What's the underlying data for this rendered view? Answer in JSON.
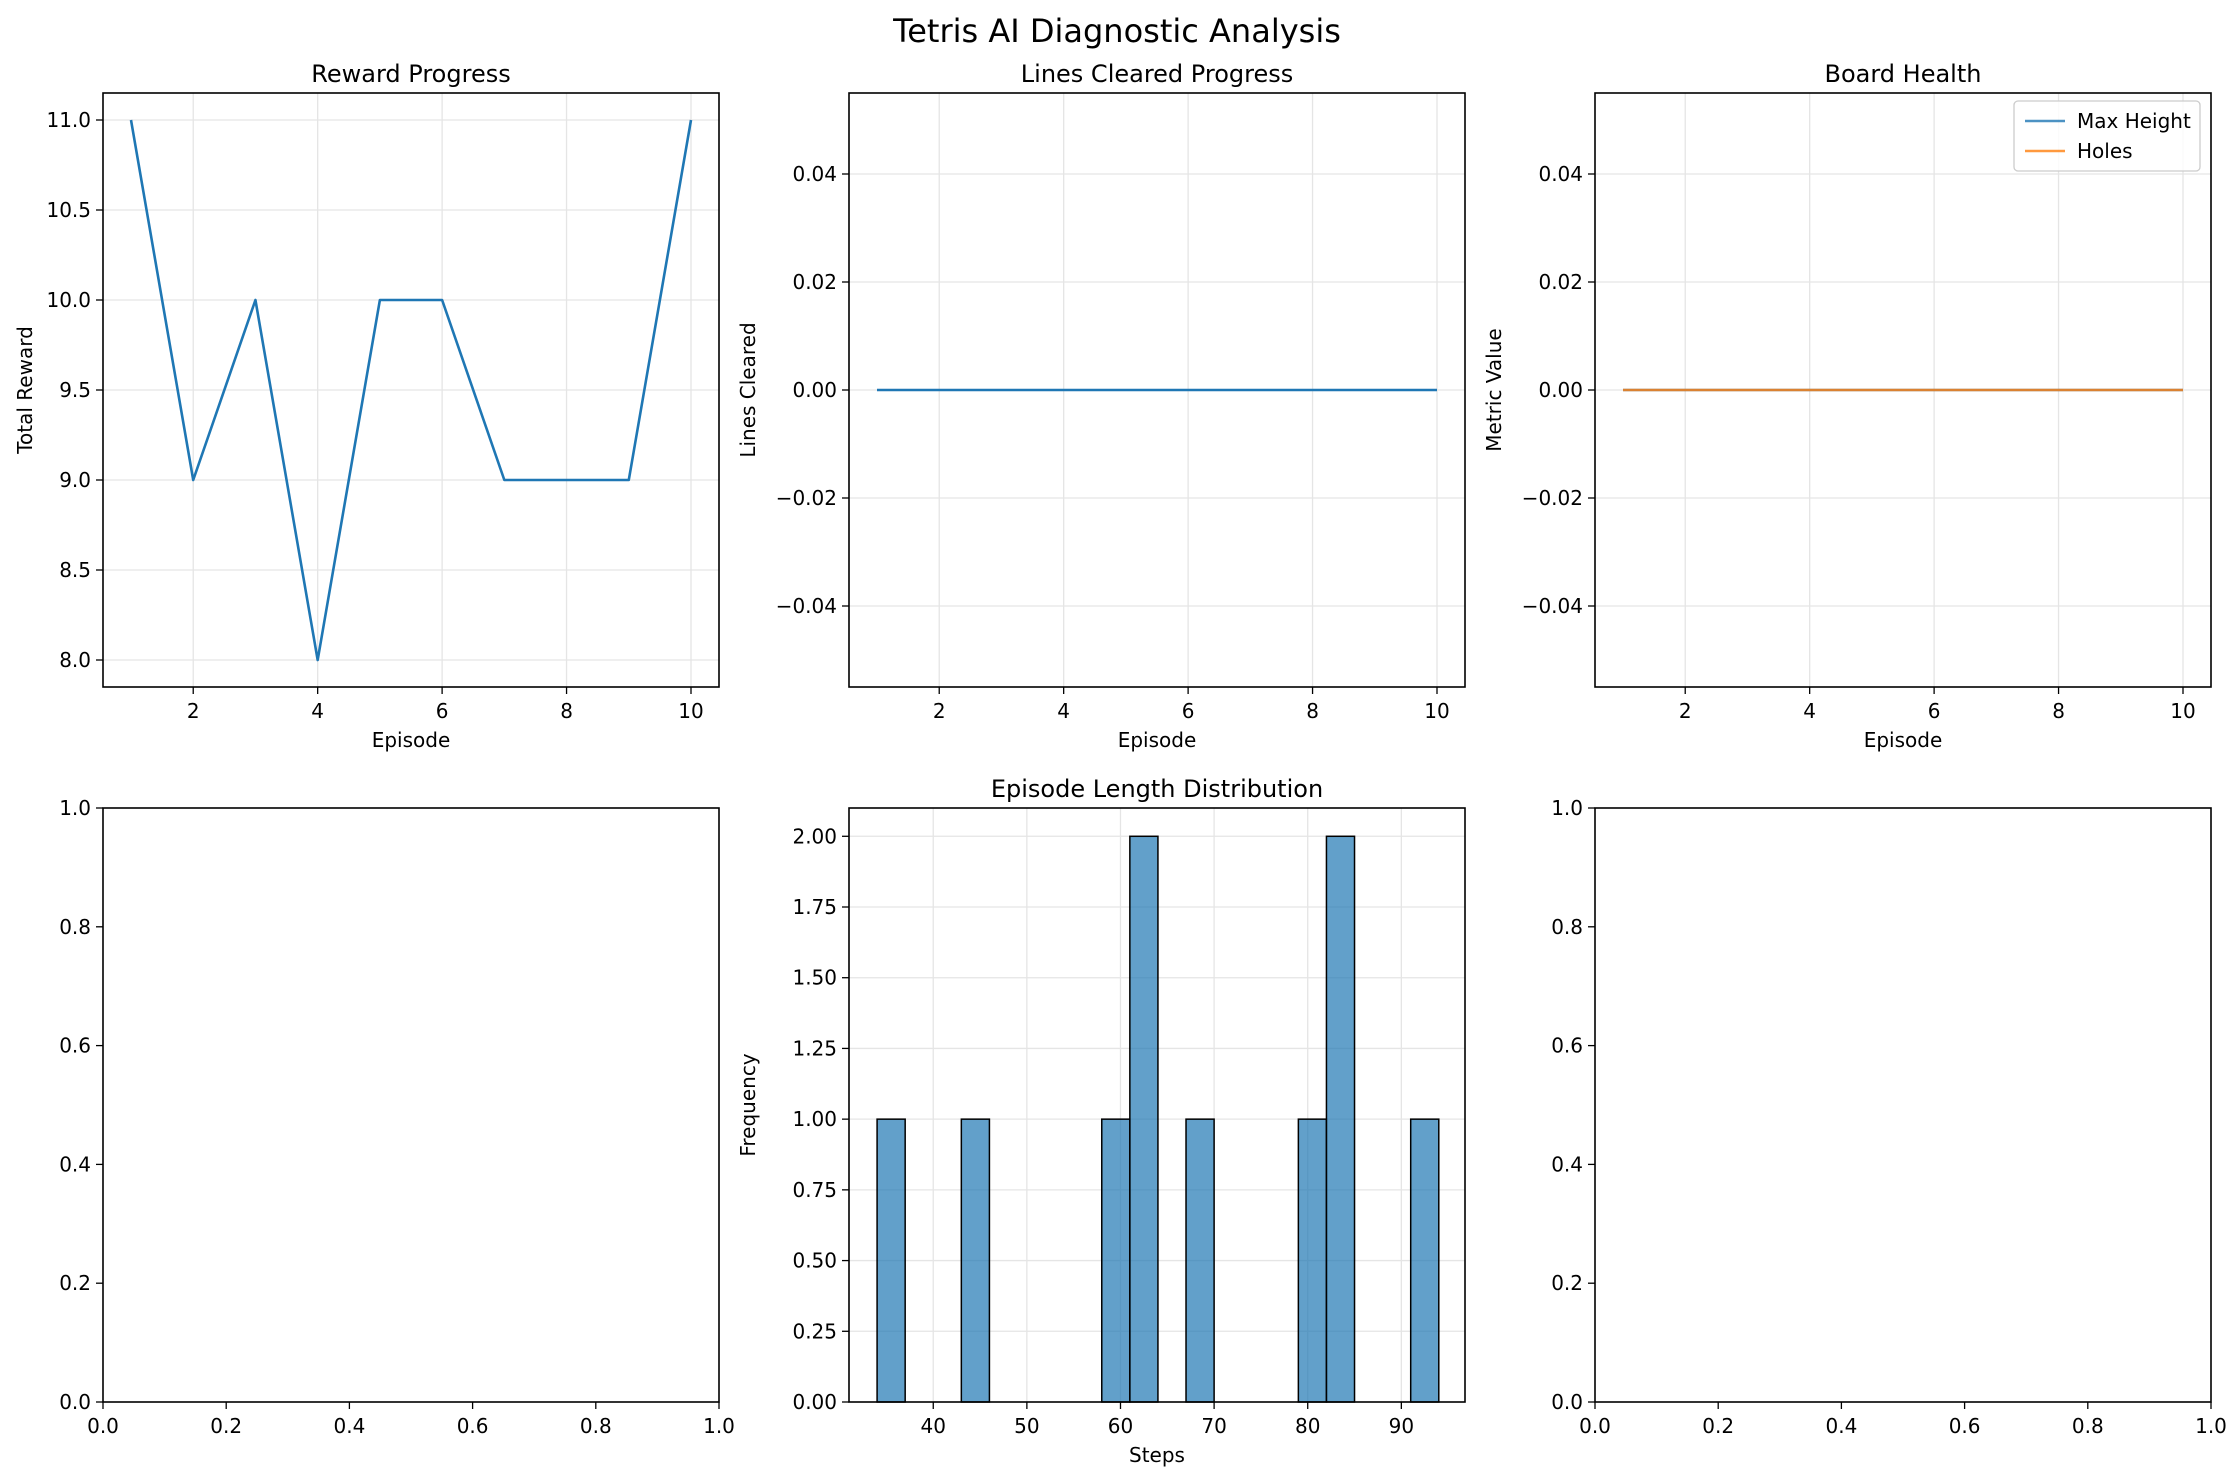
{
  "figure": {
    "suptitle": "Tetris AI Diagnostic Analysis"
  },
  "colors": {
    "blue": "#1f77b4",
    "orange": "#ff7f0e",
    "hist_fill": "#1f77b4",
    "grid": "#e6e6e6"
  },
  "chart_data": [
    {
      "id": "reward",
      "type": "line",
      "title": "Reward Progress",
      "xlabel": "Episode",
      "ylabel": "Total Reward",
      "xlim": [
        0.55,
        10.45
      ],
      "ylim": [
        7.85,
        11.15
      ],
      "xticks": [
        2,
        4,
        6,
        8,
        10
      ],
      "yticks": [
        8.0,
        8.5,
        9.0,
        9.5,
        10.0,
        10.5,
        11.0
      ],
      "ytick_labels": [
        "8.0",
        "8.5",
        "9.0",
        "9.5",
        "10.0",
        "10.5",
        "11.0"
      ],
      "grid": true,
      "series": [
        {
          "x": [
            1,
            2,
            3,
            4,
            5,
            6,
            7,
            8,
            9,
            10
          ],
          "y": [
            11,
            9,
            10,
            8,
            10,
            10,
            9,
            9,
            9,
            11
          ],
          "color": "#1f77b4"
        }
      ]
    },
    {
      "id": "lines",
      "type": "line",
      "title": "Lines Cleared Progress",
      "xlabel": "Episode",
      "ylabel": "Lines Cleared",
      "xlim": [
        0.55,
        10.45
      ],
      "ylim": [
        -0.055,
        0.055
      ],
      "xticks": [
        2,
        4,
        6,
        8,
        10
      ],
      "yticks": [
        -0.04,
        -0.02,
        0.0,
        0.02,
        0.04
      ],
      "ytick_labels": [
        "−0.04",
        "−0.02",
        "0.00",
        "0.02",
        "0.04"
      ],
      "grid": true,
      "series": [
        {
          "x": [
            1,
            2,
            3,
            4,
            5,
            6,
            7,
            8,
            9,
            10
          ],
          "y": [
            0,
            0,
            0,
            0,
            0,
            0,
            0,
            0,
            0,
            0
          ],
          "color": "#1f77b4"
        }
      ]
    },
    {
      "id": "health",
      "type": "line",
      "title": "Board Health",
      "xlabel": "Episode",
      "ylabel": "Metric Value",
      "xlim": [
        0.55,
        10.45
      ],
      "ylim": [
        -0.055,
        0.055
      ],
      "xticks": [
        2,
        4,
        6,
        8,
        10
      ],
      "yticks": [
        -0.04,
        -0.02,
        0.0,
        0.02,
        0.04
      ],
      "ytick_labels": [
        "−0.04",
        "−0.02",
        "0.00",
        "0.02",
        "0.04"
      ],
      "grid": true,
      "legend": "top-right",
      "series": [
        {
          "name": "Max Height",
          "x": [
            1,
            2,
            3,
            4,
            5,
            6,
            7,
            8,
            9,
            10
          ],
          "y": [
            0,
            0,
            0,
            0,
            0,
            0,
            0,
            0,
            0,
            0
          ],
          "color": "#1f77b4"
        },
        {
          "name": "Holes",
          "x": [
            1,
            2,
            3,
            4,
            5,
            6,
            7,
            8,
            9,
            10
          ],
          "y": [
            0,
            0,
            0,
            0,
            0,
            0,
            0,
            0,
            0,
            0
          ],
          "color": "#ff7f0e"
        }
      ]
    },
    {
      "id": "empty1",
      "type": "line",
      "title": "",
      "xlabel": "",
      "ylabel": "",
      "xlim": [
        0,
        1
      ],
      "ylim": [
        0,
        1
      ],
      "xticks": [
        0.0,
        0.2,
        0.4,
        0.6,
        0.8,
        1.0
      ],
      "xtick_labels": [
        "0.0",
        "0.2",
        "0.4",
        "0.6",
        "0.8",
        "1.0"
      ],
      "yticks": [
        0.0,
        0.2,
        0.4,
        0.6,
        0.8,
        1.0
      ],
      "ytick_labels": [
        "0.0",
        "0.2",
        "0.4",
        "0.6",
        "0.8",
        "1.0"
      ],
      "grid": false,
      "series": []
    },
    {
      "id": "hist",
      "type": "bar",
      "title": "Episode Length Distribution",
      "xlabel": "Steps",
      "ylabel": "Frequency",
      "xlim": [
        31.0,
        96.8
      ],
      "ylim": [
        0,
        2.1
      ],
      "xticks": [
        40,
        50,
        60,
        70,
        80,
        90
      ],
      "yticks": [
        0.0,
        0.25,
        0.5,
        0.75,
        1.0,
        1.25,
        1.5,
        1.75,
        2.0
      ],
      "ytick_labels": [
        "0.00",
        "0.25",
        "0.50",
        "0.75",
        "1.00",
        "1.25",
        "1.50",
        "1.75",
        "2.00"
      ],
      "grid": true,
      "bins": [
        {
          "x0": 34.0,
          "x1": 37.0,
          "count": 1
        },
        {
          "x0": 37.0,
          "x1": 40.0,
          "count": 0
        },
        {
          "x0": 40.0,
          "x1": 43.0,
          "count": 0
        },
        {
          "x0": 43.0,
          "x1": 46.0,
          "count": 1
        },
        {
          "x0": 46.0,
          "x1": 49.0,
          "count": 0
        },
        {
          "x0": 49.0,
          "x1": 52.0,
          "count": 0
        },
        {
          "x0": 52.0,
          "x1": 55.0,
          "count": 0
        },
        {
          "x0": 55.0,
          "x1": 58.0,
          "count": 0
        },
        {
          "x0": 58.0,
          "x1": 61.0,
          "count": 1
        },
        {
          "x0": 61.0,
          "x1": 64.0,
          "count": 2
        },
        {
          "x0": 64.0,
          "x1": 67.0,
          "count": 0
        },
        {
          "x0": 67.0,
          "x1": 70.0,
          "count": 1
        },
        {
          "x0": 70.0,
          "x1": 73.0,
          "count": 0
        },
        {
          "x0": 73.0,
          "x1": 76.0,
          "count": 0
        },
        {
          "x0": 76.0,
          "x1": 79.0,
          "count": 0
        },
        {
          "x0": 79.0,
          "x1": 82.0,
          "count": 1
        },
        {
          "x0": 82.0,
          "x1": 85.0,
          "count": 2
        },
        {
          "x0": 85.0,
          "x1": 88.0,
          "count": 0
        },
        {
          "x0": 88.0,
          "x1": 91.0,
          "count": 0
        },
        {
          "x0": 91.0,
          "x1": 94.0,
          "count": 1
        }
      ]
    },
    {
      "id": "empty2",
      "type": "line",
      "title": "",
      "xlabel": "",
      "ylabel": "",
      "xlim": [
        0,
        1
      ],
      "ylim": [
        0,
        1
      ],
      "xticks": [
        0.0,
        0.2,
        0.4,
        0.6,
        0.8,
        1.0
      ],
      "xtick_labels": [
        "0.0",
        "0.2",
        "0.4",
        "0.6",
        "0.8",
        "1.0"
      ],
      "yticks": [
        0.0,
        0.2,
        0.4,
        0.6,
        0.8,
        1.0
      ],
      "ytick_labels": [
        "0.0",
        "0.2",
        "0.4",
        "0.6",
        "0.8",
        "1.0"
      ],
      "grid": false,
      "series": []
    }
  ]
}
